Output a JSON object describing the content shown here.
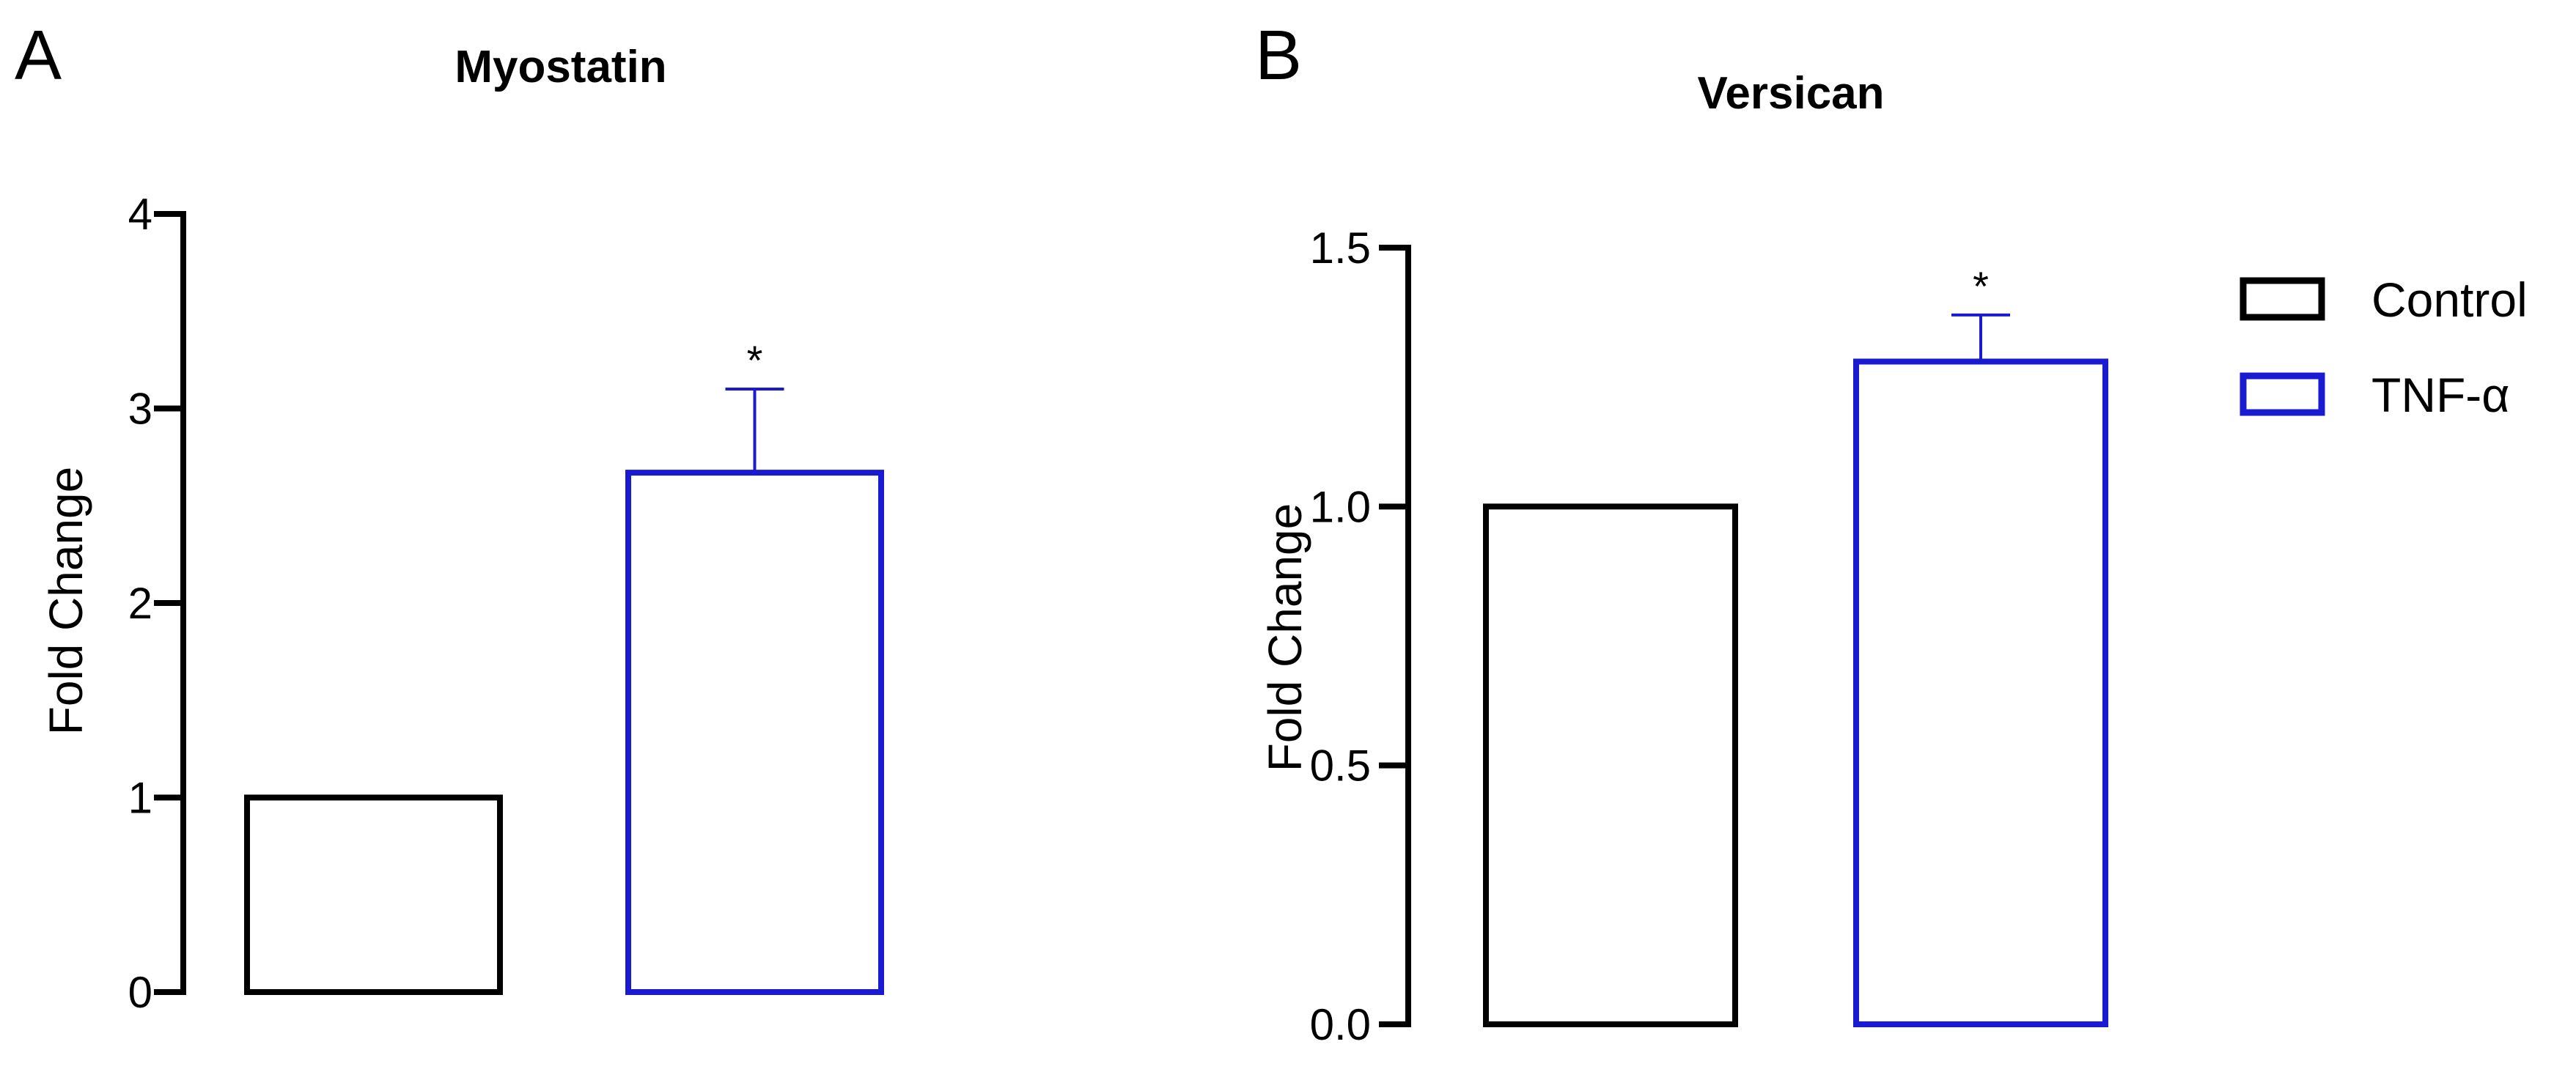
{
  "chart_data": [
    {
      "type": "bar",
      "panel_label": "A",
      "title": "Myostatin",
      "ylabel": "Fold Change",
      "xlabel": "",
      "ylim": [
        0,
        4
      ],
      "yticks": [
        0,
        1,
        2,
        3,
        4
      ],
      "ytick_labels": [
        "0",
        "1",
        "2",
        "3",
        "4"
      ],
      "categories": [
        "Control",
        "TNF-α"
      ],
      "values": [
        1.0,
        2.67
      ],
      "error_upper": [
        0,
        0.43
      ],
      "significance": [
        "",
        "*"
      ],
      "colors": [
        "#000000",
        "#1a1ad0"
      ]
    },
    {
      "type": "bar",
      "panel_label": "B",
      "title": "Versican",
      "ylabel": "Fold Change",
      "xlabel": "",
      "ylim": [
        0,
        1.5
      ],
      "yticks": [
        0,
        0.5,
        1.0,
        1.5
      ],
      "ytick_labels": [
        "0.0",
        "0.5",
        "1.0",
        "1.5"
      ],
      "categories": [
        "Control",
        "TNF-α"
      ],
      "values": [
        1.0,
        1.28
      ],
      "error_upper": [
        0,
        0.09
      ],
      "significance": [
        "",
        "*"
      ],
      "colors": [
        "#000000",
        "#1a1ad0"
      ]
    }
  ],
  "legend": {
    "placement": "right",
    "items": [
      {
        "label": "Control",
        "color": "#000000"
      },
      {
        "label": "TNF-α",
        "color": "#1a1ad0"
      }
    ]
  }
}
